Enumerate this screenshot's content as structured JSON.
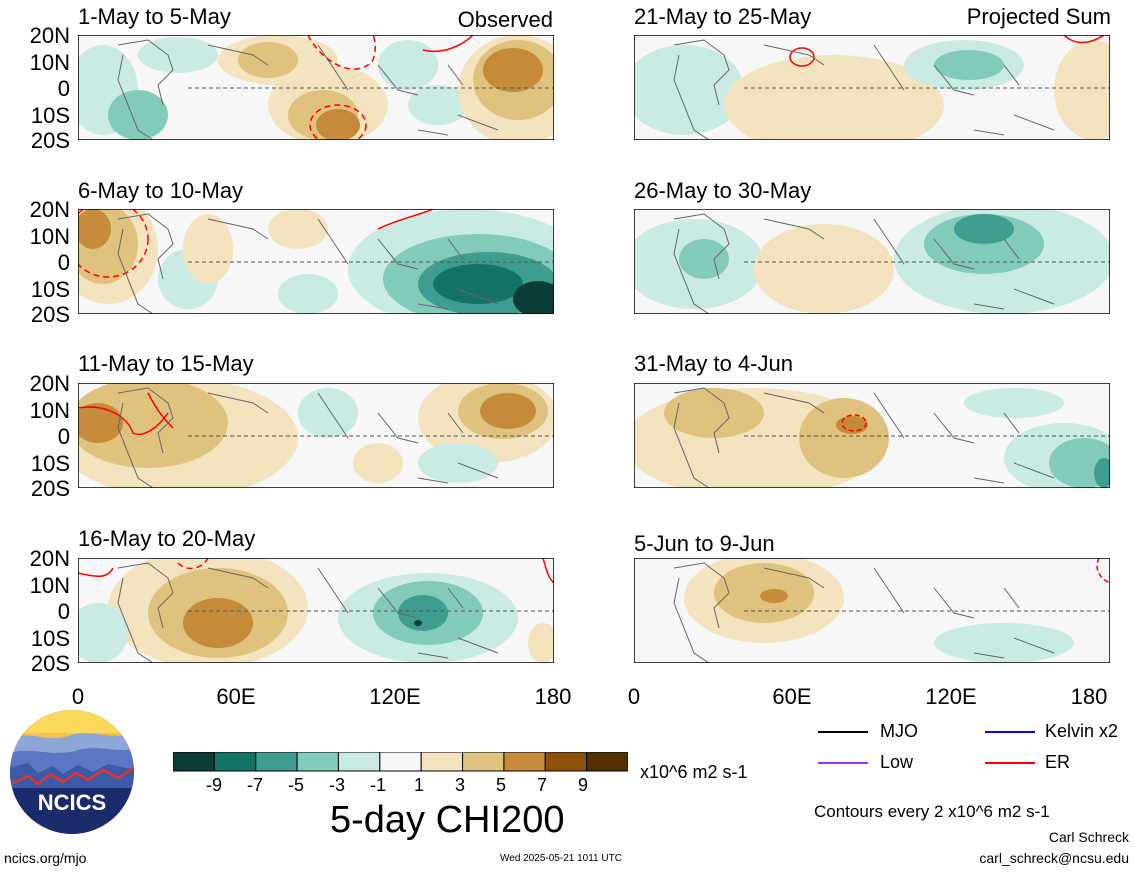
{
  "panels": [
    {
      "title": "1-May to 5-May",
      "label": "Observed"
    },
    {
      "title": "6-May to 10-May",
      "label": ""
    },
    {
      "title": "11-May to 15-May",
      "label": ""
    },
    {
      "title": "16-May to 20-May",
      "label": ""
    },
    {
      "title": "21-May to 25-May",
      "label": "Projected Sum"
    },
    {
      "title": "26-May to 30-May",
      "label": ""
    },
    {
      "title": "31-May to 4-Jun",
      "label": ""
    },
    {
      "title": "5-Jun to 9-Jun",
      "label": ""
    }
  ],
  "lat_labels": [
    "20N",
    "10N",
    "0",
    "10S",
    "20S"
  ],
  "lon_labels": [
    "0",
    "60E",
    "120E",
    "180"
  ],
  "colorbar": {
    "ticks": [
      "-9",
      "-7",
      "-5",
      "-3",
      "-1",
      "1",
      "3",
      "5",
      "7",
      "9"
    ],
    "colors": [
      "#0b3d36",
      "#137367",
      "#3f9d8f",
      "#82cbbb",
      "#c9ebe3",
      "#f7f7f7",
      "#f3e3bf",
      "#dfc27d",
      "#c58a3a",
      "#8c510a",
      "#543005"
    ],
    "units": "x10^6 m2 s-1",
    "title": "5-day CHI200"
  },
  "legend": {
    "items": [
      {
        "name": "MJO",
        "color": "#000000"
      },
      {
        "name": "Kelvin x2",
        "color": "#0000ff"
      },
      {
        "name": "Low",
        "color": "#9b30ff"
      },
      {
        "name": "ER",
        "color": "#ff0000"
      }
    ],
    "contours_note": "Contours every 2 x10^6 m2 s-1"
  },
  "logo": {
    "text": "NCICS"
  },
  "footer": {
    "url": "ncics.org/mjo",
    "timestamp": "Wed 2025-05-21 1011 UTC",
    "author": "Carl Schreck",
    "email": "carl_schreck@ncsu.edu"
  }
}
